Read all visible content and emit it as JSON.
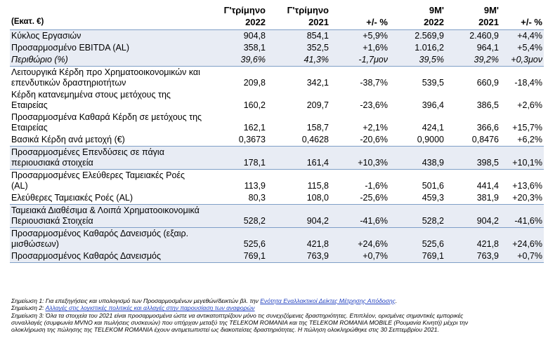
{
  "table": {
    "headers": [
      "(Εκατ. €)",
      "Γ'τρίμηνο 2022",
      "Γ'τρίμηνο 2021",
      "+/- %",
      "9M' 2022",
      "9M' 2021",
      "+/- %"
    ],
    "header_lines": [
      [
        "(Εκατ. €)",
        ""
      ],
      [
        "Γ'τρίμηνο",
        "2022"
      ],
      [
        "Γ'τρίμηνο",
        "2021"
      ],
      [
        "+/- %",
        ""
      ],
      [
        "9M'",
        "2022"
      ],
      [
        "9M'",
        "2021"
      ],
      [
        "+/- %",
        ""
      ]
    ],
    "rows": [
      {
        "label": "Κύκλος Εργασιών",
        "values": [
          "904,8",
          "854,1",
          "+5,9%",
          "2.569,9",
          "2.460,9",
          "+4,4%"
        ]
      },
      {
        "label": "Προσαρμοσμένο EBITDA (AL)",
        "values": [
          "358,1",
          "352,5",
          "+1,6%",
          "1.016,2",
          "964,1",
          "+5,4%"
        ]
      },
      {
        "label": "Περιθώριο (%)",
        "values": [
          "39,6%",
          "41,3%",
          "-1,7μον",
          "39,5%",
          "39,2%",
          "+0,3μον"
        ]
      },
      {
        "label": "Λειτουργικά Κέρδη προ Χρηματοοικονομικών και επενδυτικών δραστηριοτήτων",
        "values": [
          "209,8",
          "342,1",
          "-38,7%",
          "539,5",
          "660,9",
          "-18,4%"
        ]
      },
      {
        "label": "Κέρδη κατανεμημένα στους μετόχους της Εταιρείας",
        "values": [
          "160,2",
          "209,7",
          "-23,6%",
          "396,4",
          "386,5",
          "+2,6%"
        ]
      },
      {
        "label": "Προσαρμοσμένα Καθαρά Κέρδη σε μετόχους της Εταιρείας",
        "values": [
          "162,1",
          "158,7",
          "+2,1%",
          "424,1",
          "366,6",
          "+15,7%"
        ]
      },
      {
        "label": "Βασικά Κέρδη ανά μετοχή (€)",
        "values": [
          "0,3673",
          "0,4628",
          "-20,6%",
          "0,9000",
          "0,8476",
          "+6,2%"
        ]
      },
      {
        "label": "Προσαρμοσμένες Επενδύσεις σε πάγια περιουσιακά στοιχεία",
        "values": [
          "178,1",
          "161,4",
          "+10,3%",
          "438,9",
          "398,5",
          "+10,1%"
        ]
      },
      {
        "label": "Προσαρμοσμένες Ελεύθερες Ταμειακές Ροές (AL)",
        "values": [
          "113,9",
          "115,8",
          "-1,6%",
          "501,6",
          "441,4",
          "+13,6%"
        ]
      },
      {
        "label": "Ελεύθερες Ταμειακές Ροές (AL)",
        "values": [
          "80,3",
          "108,0",
          "-25,6%",
          "459,3",
          "381,9",
          "+20,3%"
        ]
      },
      {
        "label": "Ταμειακά Διαθέσιμα & Λοιπά Χρηματοοικονομικά Περιουσιακά Στοιχεία",
        "values": [
          "528,2",
          "904,2",
          "-41,6%",
          "528,2",
          "904,2",
          "-41,6%"
        ]
      },
      {
        "label": "Προσαρμοσμένος Καθαρός Δανεισμός (εξαιρ. μισθώσεων)",
        "values": [
          "525,6",
          "421,8",
          "+24,6%",
          "525,6",
          "421,8",
          "+24,6%"
        ]
      },
      {
        "label": "Προσαρμοσμένος Καθαρός Δανεισμός",
        "values": [
          "769,1",
          "763,9",
          "+0,7%",
          "769,1",
          "763,9",
          "+0,7%"
        ]
      }
    ]
  },
  "notes": {
    "n1_text": "Σημείωση 1: Για επεξηγήσεις και υπολογισμό των Προσαρμοσμένων μεγεθών/δεικτών βλ. την ",
    "n1_link": "Ενότητα Εναλλακτικοί Δείκτες Μέτρησης Απόδοσης",
    "n1_end": ".",
    "n2_text": "Σημείωση 2: ",
    "n2_link": "Αλλαγές στις λογιστικές πολιτικές και αλλαγές στην παρουσίαση των αναφορών",
    "n3_line1": "Σημείωση 3: Όλα τα στοιχεία του 2021 είναι προσαρμοσμένα ώστε να αντικατοπτρίζουν μόνο τις συνεχιζόμενες δραστηριότητες. Επιπλέον, ορισμένες σημαντικές εμπορικές",
    "n3_line2": "συναλλαγές (συμφωνία MVNO και πωλήσεις συσκευών) που υπήρχαν μεταξύ της TELEKOM ROMANIA και της TELEKOM ROMANIA MOBILE (Ρουμανία Κινητή) μέχρι την",
    "n3_line3": "ολοκλήρωση της πώλησης της TELEKOM ROMANIA έχουν αντιμετωπιστεί ως διακοπείσες δραστηριότητες. Η πώληση ολοκληρώθηκε στις 30 Σεπτεμβρίου 2021."
  },
  "colors": {
    "shade": "#e8ecf4",
    "rule": "#7f9fc7",
    "link": "#1f3fbf"
  }
}
